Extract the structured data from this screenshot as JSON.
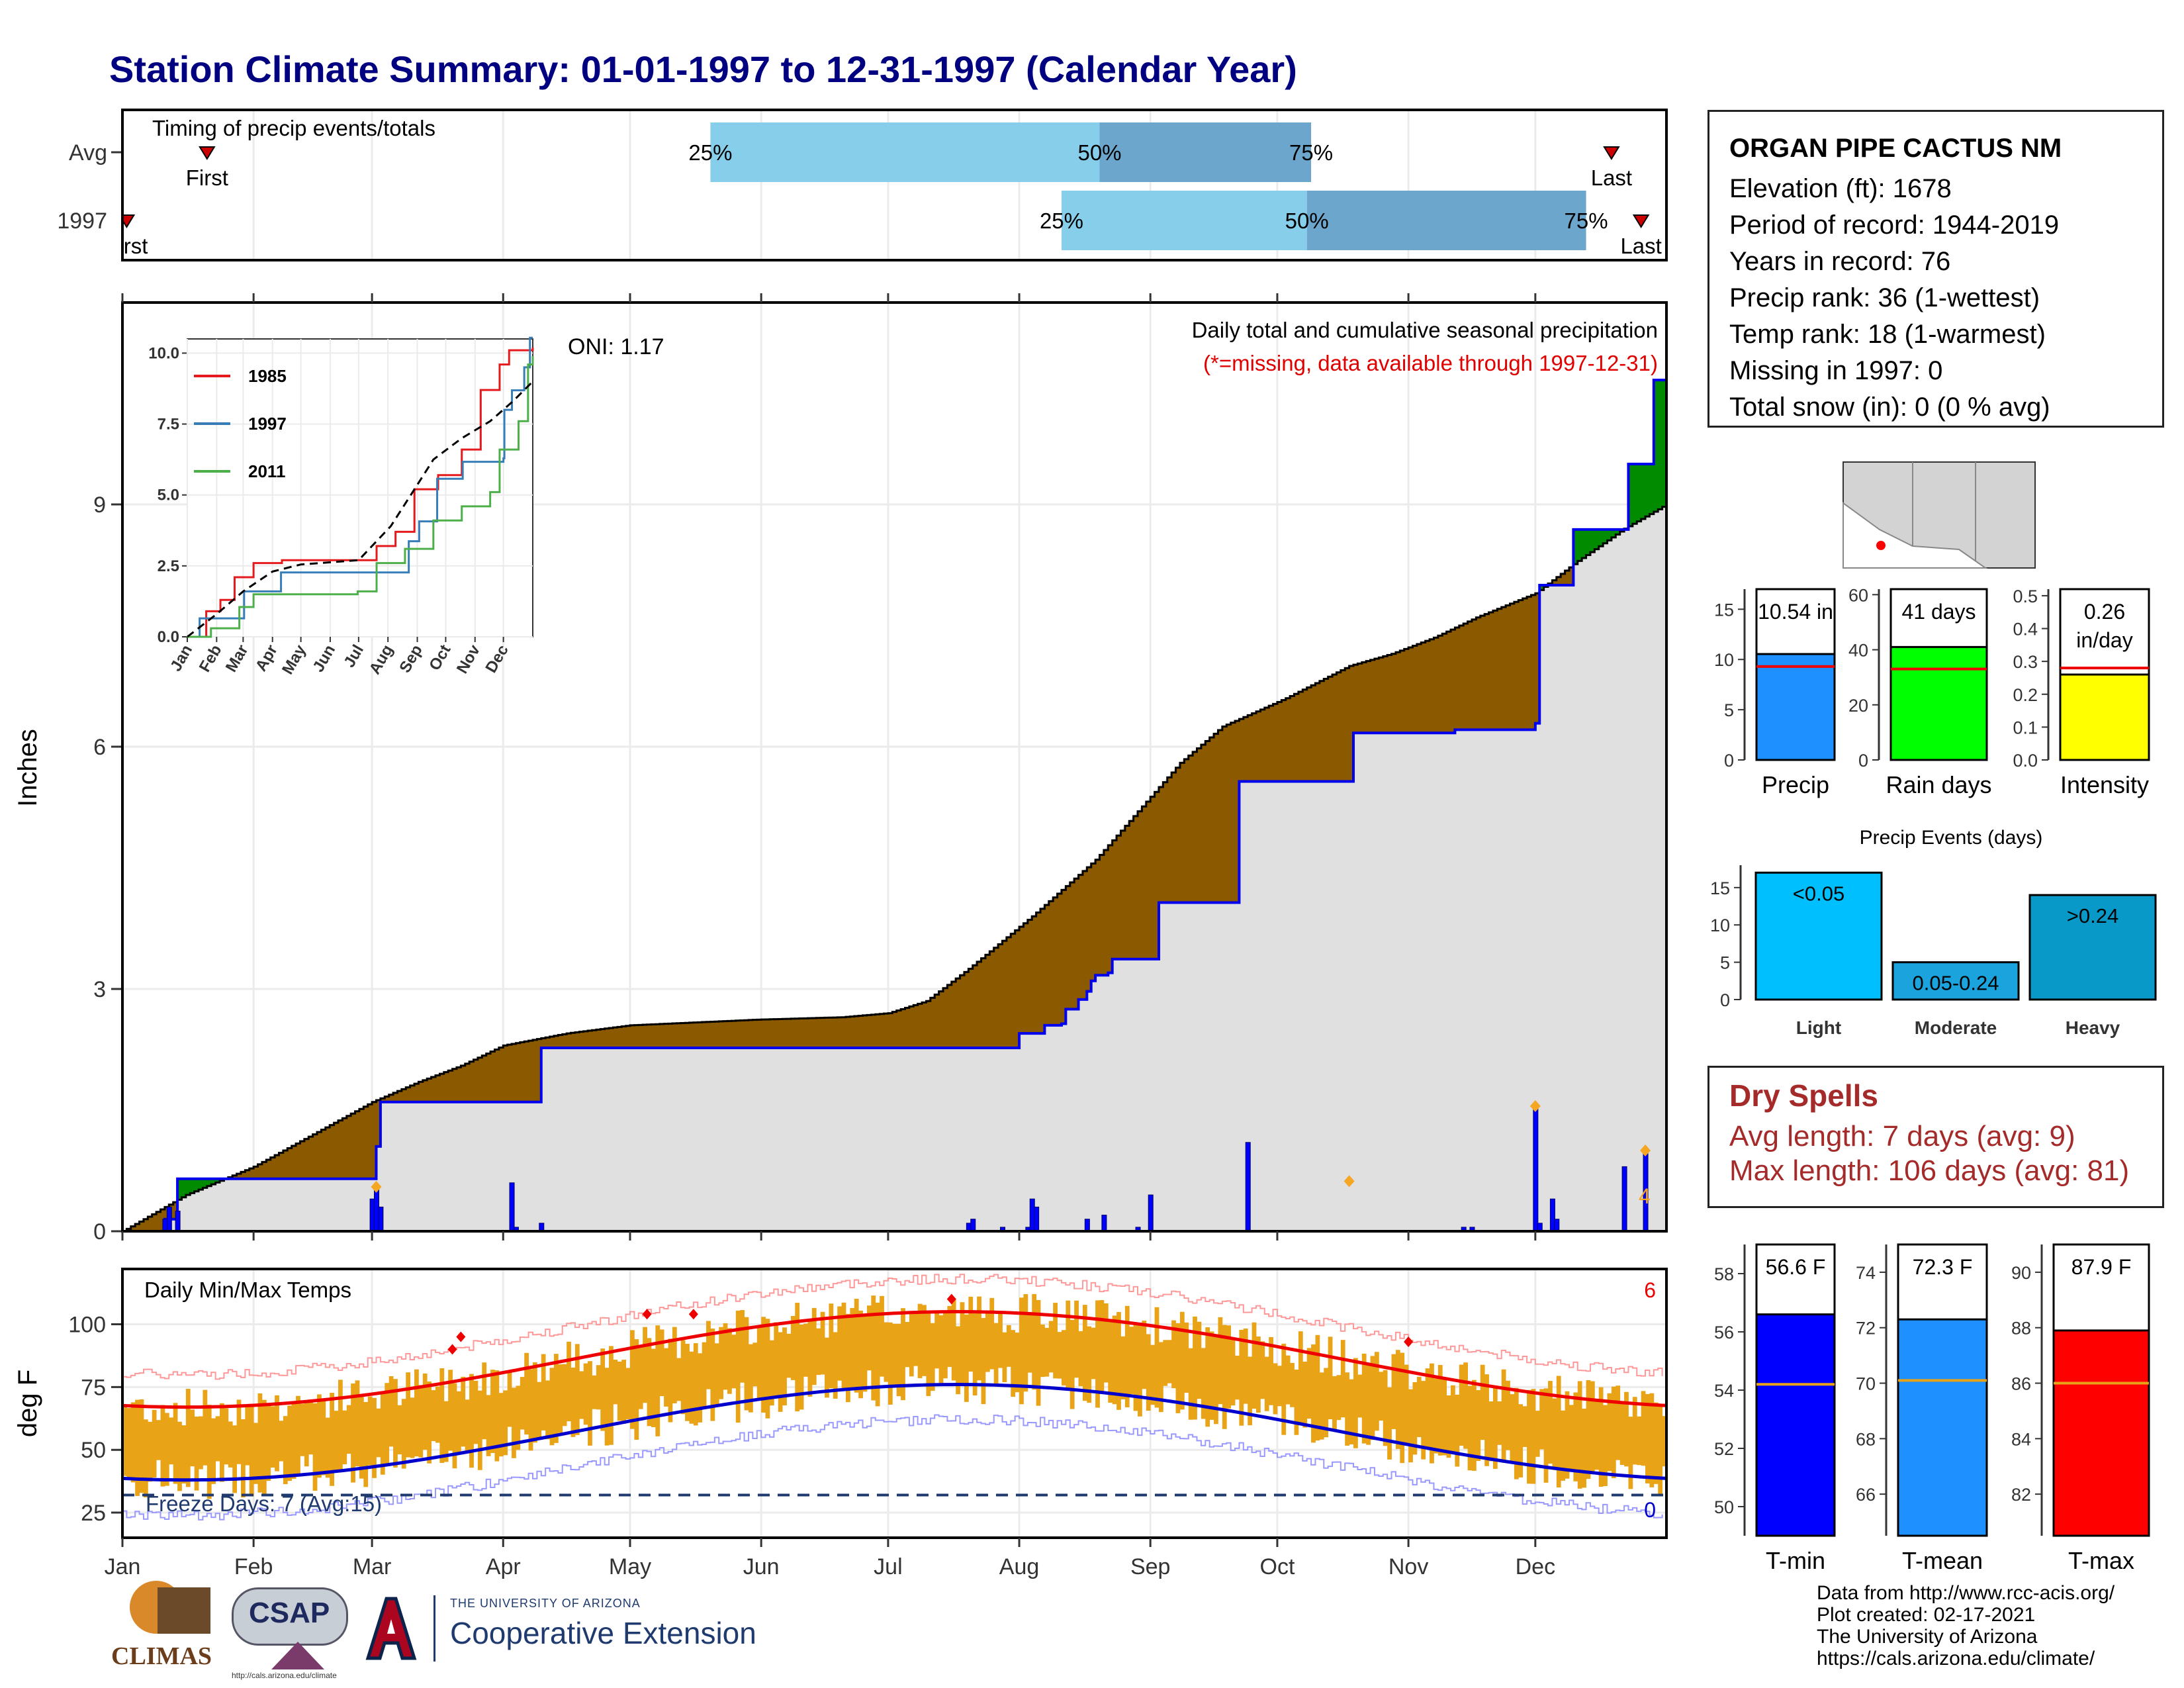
{
  "title": "Station Climate Summary: 01-01-1997 to 12-31-1997 (Calendar Year)",
  "station": {
    "name": "ORGAN PIPE CACTUS NM",
    "lines": [
      "Elevation (ft): 1678",
      "Period of record: 1944-2019",
      "Years in record: 76",
      "Precip rank: 36 (1-wettest)",
      "Temp rank: 18 (1-warmest)",
      "Missing in 1997: 0",
      "Total snow (in): 0 (0 % avg)"
    ]
  },
  "dry_spells": {
    "heading": "Dry Spells",
    "avg": "Avg length: 7 days (avg: 9)",
    "max": "Max length: 106 days (avg: 81)"
  },
  "credits": [
    "Data from http://www.rcc-acis.org/",
    "Plot created: 02-17-2021",
    "The University of Arizona",
    "https://cals.arizona.edu/climate/"
  ],
  "logos": {
    "climas": "CLIMAS",
    "csap": "CSAP",
    "csap_url": "http://cals.arizona.edu/climate",
    "uofa_small": "THE UNIVERSITY OF ARIZONA",
    "coop": "Cooperative Extension"
  },
  "colors": {
    "title": "#000080",
    "light_blue": "#87ceeb",
    "mid_blue": "#6ca6cd",
    "brown": "#8b5a00",
    "green": "#008b00",
    "navy_line": "#0000ee",
    "orange_bar": "#e8a317",
    "grey_fill": "#e0e0e0"
  },
  "chart_data": [
    {
      "type": "bar",
      "title": "Timing of precip events/totals",
      "rows": [
        {
          "label": "Avg",
          "p25": "25%",
          "p50": "50%",
          "p75": "75%",
          "first": "First",
          "last": "Last",
          "first_doy": 20,
          "q25_doy": 139,
          "q50_doy": 231,
          "q75_doy": 281,
          "last_doy": 352
        },
        {
          "label": "1997",
          "p25": "25%",
          "p50": "50%",
          "p75": "75%",
          "first": "First",
          "last": "Last",
          "first_doy": 1,
          "q25_doy": 222,
          "q50_doy": 280,
          "q75_doy": 346,
          "last_doy": 359
        }
      ]
    },
    {
      "type": "area",
      "title": "Daily total and cumulative seasonal precipitation",
      "subtitle": "(*=missing, data available through 1997-12-31)",
      "oni": "ONI: 1.17",
      "ylabel": "Inches",
      "ylim": [
        0,
        11.5
      ],
      "yticks": [
        "0",
        "3",
        "6",
        "9"
      ],
      "corner_count": "4",
      "avg_cumulative_points": [
        [
          0,
          0
        ],
        [
          15,
          0.45
        ],
        [
          31,
          0.8
        ],
        [
          45,
          1.2
        ],
        [
          59,
          1.6
        ],
        [
          70,
          1.85
        ],
        [
          80,
          2.05
        ],
        [
          90,
          2.3
        ],
        [
          105,
          2.45
        ],
        [
          120,
          2.55
        ],
        [
          150,
          2.62
        ],
        [
          170,
          2.65
        ],
        [
          181,
          2.7
        ],
        [
          190,
          2.85
        ],
        [
          200,
          3.25
        ],
        [
          215,
          3.9
        ],
        [
          230,
          4.6
        ],
        [
          240,
          5.2
        ],
        [
          250,
          5.8
        ],
        [
          260,
          6.25
        ],
        [
          275,
          6.6
        ],
        [
          290,
          7.0
        ],
        [
          300,
          7.15
        ],
        [
          310,
          7.35
        ],
        [
          320,
          7.6
        ],
        [
          334,
          7.9
        ],
        [
          344,
          8.3
        ],
        [
          355,
          8.7
        ],
        [
          365,
          9.0
        ]
      ],
      "cumulative_1997_points": [
        [
          0,
          0
        ],
        [
          10,
          0.15
        ],
        [
          13,
          0.65
        ],
        [
          58,
          0.65
        ],
        [
          60,
          1.05
        ],
        [
          61,
          1.6
        ],
        [
          98,
          1.6
        ],
        [
          99,
          2.27
        ],
        [
          165,
          2.27
        ],
        [
          211,
          2.27
        ],
        [
          212,
          2.45
        ],
        [
          218,
          2.55
        ],
        [
          222,
          2.57
        ],
        [
          223,
          2.75
        ],
        [
          226,
          2.87
        ],
        [
          228,
          2.97
        ],
        [
          229,
          3.1
        ],
        [
          230,
          3.17
        ],
        [
          233,
          3.2
        ],
        [
          234,
          3.37
        ],
        [
          243,
          3.37
        ],
        [
          245,
          4.07
        ],
        [
          263,
          4.07
        ],
        [
          264,
          5.57
        ],
        [
          290,
          5.57
        ],
        [
          291,
          6.17
        ],
        [
          315,
          6.21
        ],
        [
          334,
          6.29
        ],
        [
          335,
          8.0
        ],
        [
          343,
          8.69
        ],
        [
          355,
          8.69
        ],
        [
          356,
          9.5
        ],
        [
          361,
          9.5
        ],
        [
          362,
          10.54
        ],
        [
          365,
          10.54
        ]
      ],
      "daily_bars_1997": [
        [
          10,
          0.15
        ],
        [
          11,
          0.3
        ],
        [
          13,
          0.25
        ],
        [
          59,
          0.4
        ],
        [
          60,
          0.55
        ],
        [
          61,
          0.3
        ],
        [
          92,
          0.6
        ],
        [
          93,
          0.05
        ],
        [
          99,
          0.1
        ],
        [
          200,
          0.1
        ],
        [
          201,
          0.15
        ],
        [
          208,
          0.05
        ],
        [
          214,
          0.05
        ],
        [
          215,
          0.4
        ],
        [
          216,
          0.3
        ],
        [
          228,
          0.15
        ],
        [
          232,
          0.2
        ],
        [
          240,
          0.05
        ],
        [
          243,
          0.45
        ],
        [
          266,
          1.1
        ],
        [
          317,
          0.05
        ],
        [
          319,
          0.05
        ],
        [
          334,
          1.55
        ],
        [
          335,
          0.1
        ],
        [
          338,
          0.4
        ],
        [
          339,
          0.15
        ],
        [
          355,
          0.8
        ],
        [
          360,
          1.0
        ]
      ],
      "inset": {
        "type": "line",
        "ylim": [
          0,
          10.5
        ],
        "yticks": [
          "0.0",
          "2.5",
          "5.0",
          "7.5",
          "10.0"
        ],
        "xticks": [
          "Jan",
          "Feb",
          "Mar",
          "Apr",
          "May",
          "Jun",
          "Jul",
          "Aug",
          "Sep",
          "Oct",
          "Nov",
          "Dec"
        ],
        "series": [
          {
            "name": "1985",
            "color": "#e41a1c",
            "points": [
              [
                0,
                0
              ],
              [
                20,
                0.9
              ],
              [
                35,
                1.3
              ],
              [
                50,
                2.1
              ],
              [
                70,
                2.6
              ],
              [
                100,
                2.7
              ],
              [
                180,
                2.7
              ],
              [
                200,
                3.2
              ],
              [
                220,
                3.7
              ],
              [
                240,
                5.2
              ],
              [
                265,
                5.7
              ],
              [
                290,
                6.6
              ],
              [
                310,
                8.7
              ],
              [
                330,
                9.6
              ],
              [
                340,
                10.1
              ],
              [
                365,
                10.2
              ]
            ]
          },
          {
            "name": "1997",
            "color": "#377eb8",
            "points": [
              [
                0,
                0
              ],
              [
                13,
                0.65
              ],
              [
                60,
                1.6
              ],
              [
                99,
                2.27
              ],
              [
                211,
                2.27
              ],
              [
                234,
                3.37
              ],
              [
                245,
                4.07
              ],
              [
                264,
                5.57
              ],
              [
                291,
                6.17
              ],
              [
                334,
                6.29
              ],
              [
                335,
                8.0
              ],
              [
                343,
                8.69
              ],
              [
                356,
                9.5
              ],
              [
                362,
                10.54
              ],
              [
                365,
                10.54
              ]
            ]
          },
          {
            "name": "2011",
            "color": "#4daf4a",
            "points": [
              [
                0,
                0
              ],
              [
                25,
                0.3
              ],
              [
                55,
                1.05
              ],
              [
                70,
                1.5
              ],
              [
                180,
                1.6
              ],
              [
                200,
                2.6
              ],
              [
                230,
                3.1
              ],
              [
                260,
                4.1
              ],
              [
                290,
                4.6
              ],
              [
                320,
                5.1
              ],
              [
                330,
                6.6
              ],
              [
                350,
                7.6
              ],
              [
                360,
                9.6
              ],
              [
                365,
                9.9
              ]
            ]
          },
          {
            "name": "",
            "color": "#000000",
            "points": [
              [
                0,
                0
              ],
              [
                31,
                0.8
              ],
              [
                59,
                1.6
              ],
              [
                90,
                2.3
              ],
              [
                120,
                2.55
              ],
              [
                181,
                2.7
              ],
              [
                215,
                3.9
              ],
              [
                240,
                5.2
              ],
              [
                260,
                6.25
              ],
              [
                290,
                7.0
              ],
              [
                320,
                7.6
              ],
              [
                344,
                8.3
              ],
              [
                365,
                9.0
              ]
            ]
          }
        ]
      }
    },
    {
      "type": "bar",
      "title": "Daily Min/Max Temps",
      "ylabel": "deg F",
      "ylim": [
        15,
        122
      ],
      "yticks": [
        "25",
        "50",
        "75",
        "100"
      ],
      "freeze_text": "Freeze Days: 7 (Avg:15)",
      "record_high_count": "6",
      "record_low_count": "0",
      "freeze_line": 32,
      "xticks": [
        "Jan",
        "Feb",
        "Mar",
        "Apr",
        "May",
        "Jun",
        "Jul",
        "Aug",
        "Sep",
        "Oct",
        "Nov",
        "Dec"
      ]
    },
    {
      "type": "bar",
      "categories": [
        "Precip",
        "Rain days",
        "Intensity"
      ],
      "values": [
        10.54,
        41,
        0.26
      ],
      "averages": [
        9.3,
        33,
        0.28
      ],
      "labels": [
        "10.54 in",
        "41 days",
        "0.26",
        "in/day"
      ],
      "ylims": [
        [
          0,
          17
        ],
        [
          0,
          62
        ],
        [
          0,
          0.52
        ]
      ],
      "yticks": [
        [
          "0",
          "5",
          "10",
          "15"
        ],
        [
          "0",
          "20",
          "40",
          "60"
        ],
        [
          "0.0",
          "0.1",
          "0.2",
          "0.3",
          "0.4",
          "0.5"
        ]
      ]
    },
    {
      "type": "bar",
      "title": "Precip Events (days)",
      "categories": [
        "Light",
        "Moderate",
        "Heavy"
      ],
      "values": [
        17,
        5,
        14
      ],
      "labels": [
        "<0.05",
        "0.05-0.24",
        ">0.24"
      ],
      "ylim": [
        0,
        18
      ],
      "yticks": [
        "0",
        "5",
        "10",
        "15"
      ]
    },
    {
      "type": "bar",
      "categories": [
        "T-min",
        "T-mean",
        "T-max"
      ],
      "values": [
        56.6,
        72.3,
        87.9
      ],
      "averages": [
        54.2,
        70.1,
        86.0
      ],
      "labels": [
        "56.6 F",
        "72.3 F",
        "87.9 F"
      ],
      "ylims": [
        [
          49,
          59
        ],
        [
          64.5,
          75
        ],
        [
          80.5,
          91
        ]
      ],
      "yticks": [
        [
          "50",
          "52",
          "54",
          "56",
          "58"
        ],
        [
          "66",
          "68",
          "70",
          "72",
          "74"
        ],
        [
          "82",
          "84",
          "86",
          "88",
          "90"
        ]
      ]
    }
  ]
}
